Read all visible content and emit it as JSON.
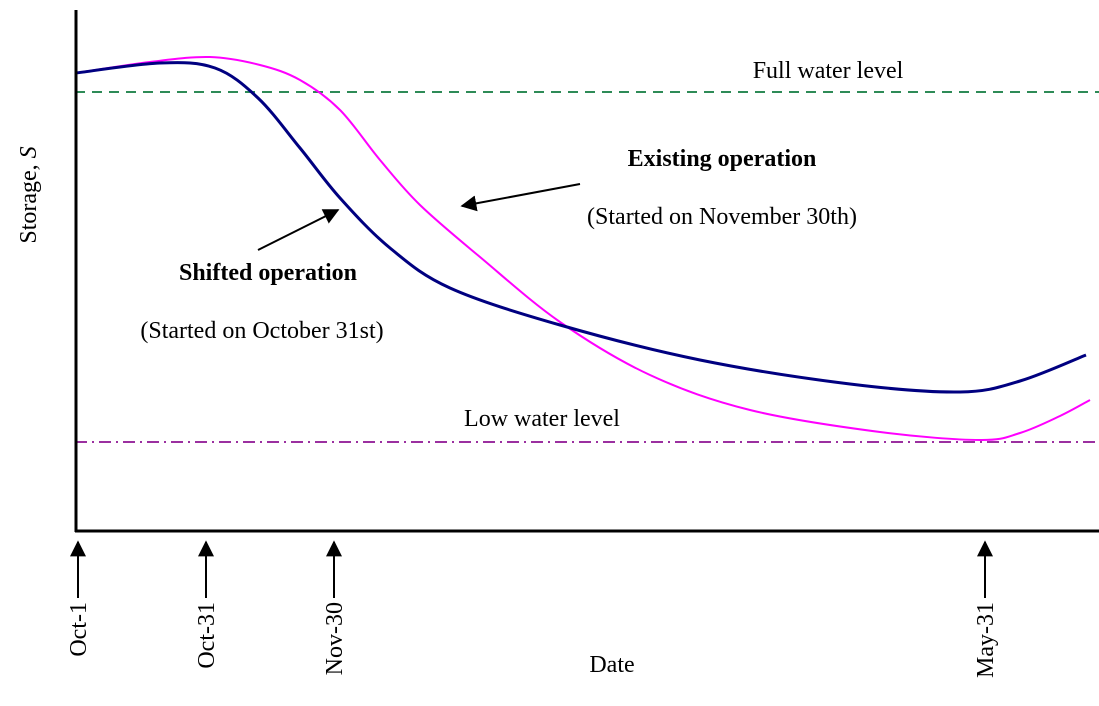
{
  "axes": {
    "y_label": "Storage, ",
    "y_symbol": "S",
    "x_label": "Date"
  },
  "dates": [
    "Oct-1",
    "Oct-31",
    "Nov-30",
    "May-31"
  ],
  "levels": {
    "full": "Full water level",
    "low": "Low water level"
  },
  "annotations": {
    "existing": {
      "title": "Existing operation",
      "note": "(Started on November 30th)"
    },
    "shifted": {
      "title": "Shifted operation",
      "note": "(Started on October 31st)"
    }
  }
}
